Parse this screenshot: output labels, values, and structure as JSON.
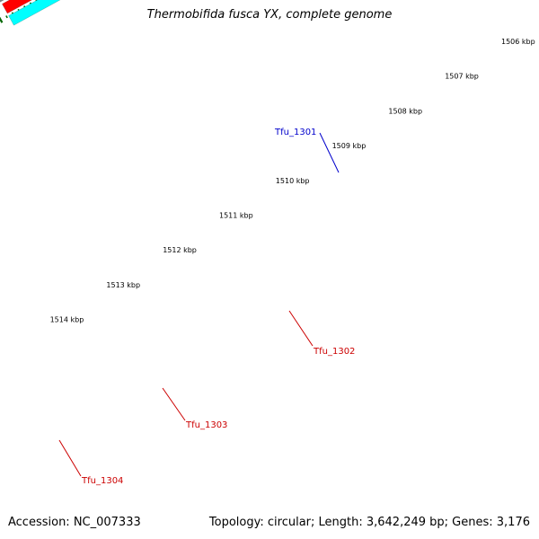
{
  "title": "Thermobifida fusca YX, complete genome",
  "footer": {
    "accession": "Accession: NC_007333",
    "summary": "Topology: circular; Length: 3,642,249 bp; Genes: 3,176"
  },
  "colors": {
    "background": "#ffffff",
    "backbone": "#808080",
    "ruler_ticks": "#006600",
    "forward_cds": "#ff0000",
    "forward_gene": "#00ffff",
    "reverse_cds": "#0000ff",
    "reverse_gene": "#483d8b",
    "forward_label": "#cc0000",
    "reverse_label": "#0000cc"
  },
  "ruler": {
    "labels": [
      "1506 kbp",
      "1507 kbp",
      "1508 kbp",
      "1509 kbp",
      "1510 kbp",
      "1511 kbp",
      "1512 kbp",
      "1513 kbp",
      "1514 kbp"
    ]
  },
  "genes": [
    {
      "name": "Tfu_1301",
      "strand": "reverse"
    },
    {
      "name": "Tfu_1302",
      "strand": "forward"
    },
    {
      "name": "Tfu_1303",
      "strand": "forward"
    },
    {
      "name": "Tfu_1304",
      "strand": "forward"
    }
  ]
}
